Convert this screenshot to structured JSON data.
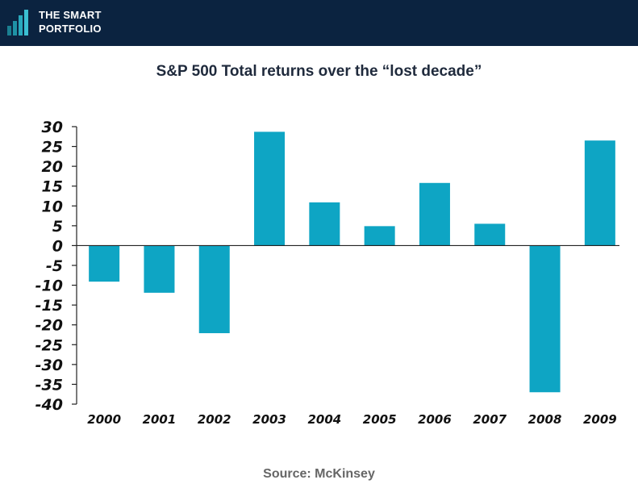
{
  "brand": {
    "line1": "THE SMART",
    "line2": "PORTFOLIO"
  },
  "source": "Source: McKinsey",
  "colors": {
    "header": "#0b2340",
    "bar": "#0ea5c4",
    "axis": "#222222",
    "text": "#111111"
  },
  "chart_data": {
    "type": "bar",
    "title": "S&P 500 Total returns over the “lost decade”",
    "xlabel": "",
    "ylabel": "",
    "categories": [
      "2000",
      "2001",
      "2002",
      "2003",
      "2004",
      "2005",
      "2006",
      "2007",
      "2008",
      "2009"
    ],
    "values": [
      -9.1,
      -11.9,
      -22.1,
      28.7,
      10.9,
      4.9,
      15.8,
      5.5,
      -37.0,
      26.5
    ],
    "ylim": [
      -40,
      30
    ],
    "yticks": [
      "30",
      "25",
      "20",
      "15",
      "10",
      "5",
      "0",
      "-5",
      "-10",
      "-15",
      "-20",
      "-25",
      "-30",
      "-35",
      "-40"
    ],
    "grid": false,
    "legend": "none"
  }
}
